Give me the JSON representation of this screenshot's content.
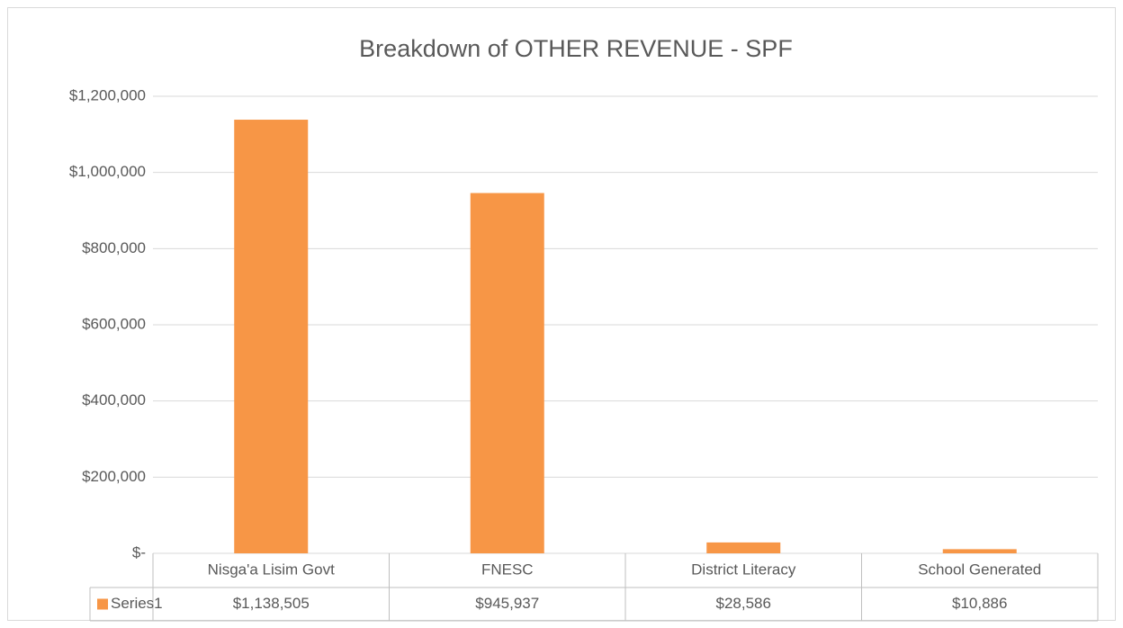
{
  "chart_data": {
    "type": "bar",
    "title": "Breakdown of OTHER REVENUE - SPF",
    "categories": [
      "Nisga'a Lisim Govt",
      "FNESC",
      "District Literacy",
      "School Generated"
    ],
    "series": [
      {
        "name": "Series1",
        "color": "#f79646",
        "values": [
          1138505,
          945937,
          28586,
          10886
        ],
        "value_labels": [
          "$1,138,505",
          "$945,937",
          "$28,586",
          "$10,886"
        ]
      }
    ],
    "ylim": [
      0,
      1200000
    ],
    "yticks": [
      {
        "value": 0,
        "label": "$-"
      },
      {
        "value": 200000,
        "label": "$200,000"
      },
      {
        "value": 400000,
        "label": "$400,000"
      },
      {
        "value": 600000,
        "label": "$600,000"
      },
      {
        "value": 800000,
        "label": "$800,000"
      },
      {
        "value": 1000000,
        "label": "$1,000,000"
      },
      {
        "value": 1200000,
        "label": "$1,200,000"
      }
    ],
    "grid": true
  }
}
